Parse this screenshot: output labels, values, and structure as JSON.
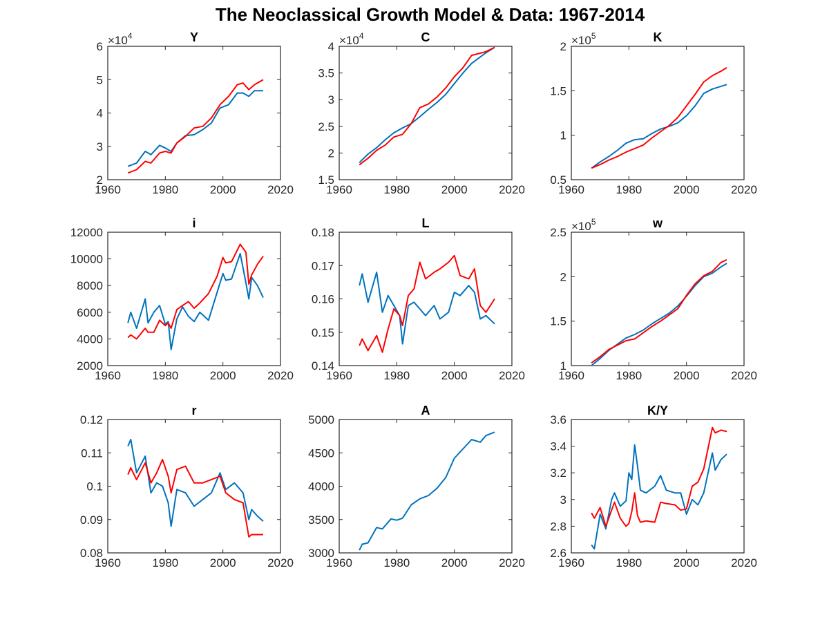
{
  "figure": {
    "title": "The Neoclassical Growth Model & Data: 1967-2014",
    "colors": {
      "series_a": "#0072bd",
      "series_b": "#ff0000",
      "axis": "#262626"
    }
  },
  "chart_data": [
    {
      "type": "line",
      "title": "Y",
      "xlim": [
        1960,
        2020
      ],
      "ylim": [
        20000,
        60000
      ],
      "xticks": [
        1960,
        1980,
        2000,
        2020
      ],
      "yticks": [
        20000,
        30000,
        40000,
        50000,
        60000
      ],
      "ytick_labels": [
        "2",
        "3",
        "4",
        "5",
        "6"
      ],
      "exponent": "4",
      "x": [
        1967,
        1970,
        1973,
        1975,
        1978,
        1980,
        1982,
        1984,
        1987,
        1990,
        1993,
        1996,
        1999,
        2002,
        2005,
        2007,
        2009,
        2011,
        2014
      ],
      "series": [
        {
          "values": [
            24000,
            25000,
            28500,
            27500,
            30300,
            29500,
            28500,
            31000,
            33200,
            33500,
            35000,
            37000,
            41500,
            42500,
            46000,
            46000,
            45000,
            46700,
            46700
          ]
        },
        {
          "values": [
            22000,
            23000,
            25500,
            25000,
            28000,
            28500,
            28000,
            31000,
            33000,
            35500,
            36000,
            38500,
            42500,
            45000,
            48500,
            49000,
            47000,
            48500,
            50000
          ]
        }
      ]
    },
    {
      "type": "line",
      "title": "C",
      "xlim": [
        1960,
        2020
      ],
      "ylim": [
        15000,
        40000
      ],
      "xticks": [
        1960,
        1980,
        2000,
        2020
      ],
      "yticks": [
        15000,
        20000,
        25000,
        30000,
        35000,
        40000
      ],
      "ytick_labels": [
        "1.5",
        "2",
        "2.5",
        "3",
        "3.5",
        "4"
      ],
      "exponent": "4",
      "x": [
        1967,
        1970,
        1973,
        1976,
        1979,
        1982,
        1985,
        1988,
        1991,
        1994,
        1997,
        2000,
        2003,
        2006,
        2009,
        2011,
        2014
      ],
      "series": [
        {
          "values": [
            18200,
            19800,
            21000,
            22500,
            23800,
            24700,
            25500,
            26800,
            28200,
            29500,
            31000,
            33000,
            35000,
            36800,
            38000,
            38800,
            39800
          ]
        },
        {
          "values": [
            17800,
            19000,
            20500,
            21500,
            23000,
            23500,
            25500,
            28500,
            29200,
            30500,
            32200,
            34300,
            36000,
            38300,
            38700,
            39000,
            39800
          ]
        }
      ]
    },
    {
      "type": "line",
      "title": "K",
      "xlim": [
        1960,
        2020
      ],
      "ylim": [
        50000,
        200000
      ],
      "xticks": [
        1960,
        1980,
        2000,
        2020
      ],
      "yticks": [
        50000,
        100000,
        150000,
        200000
      ],
      "ytick_labels": [
        "0.5",
        "1",
        "1.5",
        "2"
      ],
      "exponent": "5",
      "x": [
        1967,
        1970,
        1973,
        1976,
        1979,
        1982,
        1985,
        1988,
        1991,
        1994,
        1997,
        2000,
        2003,
        2006,
        2009,
        2012,
        2014
      ],
      "series": [
        {
          "values": [
            63000,
            70000,
            76000,
            83000,
            91000,
            95000,
            96000,
            102000,
            107000,
            110000,
            114000,
            122000,
            133000,
            147000,
            152000,
            155000,
            157000
          ]
        },
        {
          "values": [
            63000,
            67000,
            72000,
            76000,
            81000,
            85000,
            89000,
            97000,
            104000,
            111000,
            120000,
            133000,
            146000,
            160000,
            167000,
            172000,
            176000
          ]
        }
      ]
    },
    {
      "type": "line",
      "title": "i",
      "xlim": [
        1960,
        2020
      ],
      "ylim": [
        2000,
        12000
      ],
      "xticks": [
        1960,
        1980,
        2000,
        2020
      ],
      "yticks": [
        2000,
        4000,
        6000,
        8000,
        10000,
        12000
      ],
      "ytick_labels": [
        "2000",
        "4000",
        "6000",
        "8000",
        "10000",
        "12000"
      ],
      "exponent": "",
      "x": [
        1967,
        1968,
        1970,
        1973,
        1974,
        1976,
        1978,
        1980,
        1981,
        1982,
        1984,
        1986,
        1988,
        1990,
        1992,
        1995,
        1998,
        2000,
        2001,
        2003,
        2006,
        2008,
        2009,
        2010,
        2012,
        2014
      ],
      "series": [
        {
          "values": [
            5200,
            6000,
            4800,
            7000,
            5200,
            6000,
            6500,
            5100,
            5300,
            3200,
            5500,
            6400,
            5700,
            5300,
            6000,
            5400,
            7500,
            8900,
            8400,
            8500,
            10400,
            8200,
            7000,
            8600,
            8000,
            7100
          ]
        },
        {
          "values": [
            4100,
            4300,
            4000,
            4800,
            4500,
            4500,
            5400,
            5000,
            5200,
            4800,
            6200,
            6500,
            6800,
            6300,
            6700,
            7400,
            8700,
            10100,
            9700,
            9800,
            11100,
            10500,
            8100,
            8800,
            9600,
            10200
          ]
        }
      ]
    },
    {
      "type": "line",
      "title": "L",
      "xlim": [
        1960,
        2020
      ],
      "ylim": [
        0.14,
        0.18
      ],
      "xticks": [
        1960,
        1980,
        2000,
        2020
      ],
      "yticks": [
        0.14,
        0.15,
        0.16,
        0.17,
        0.18
      ],
      "ytick_labels": [
        "0.14",
        "0.15",
        "0.16",
        "0.17",
        "0.18"
      ],
      "exponent": "",
      "x": [
        1967,
        1968,
        1970,
        1973,
        1975,
        1977,
        1979,
        1981,
        1982,
        1984,
        1986,
        1988,
        1990,
        1993,
        1995,
        1998,
        2000,
        2002,
        2005,
        2007,
        2009,
        2011,
        2014
      ],
      "series": [
        {
          "values": [
            0.164,
            0.1675,
            0.159,
            0.168,
            0.156,
            0.161,
            0.158,
            0.155,
            0.1465,
            0.158,
            0.159,
            0.157,
            0.155,
            0.158,
            0.154,
            0.156,
            0.162,
            0.161,
            0.164,
            0.162,
            0.154,
            0.155,
            0.1525
          ]
        },
        {
          "values": [
            0.146,
            0.148,
            0.1445,
            0.149,
            0.144,
            0.151,
            0.157,
            0.155,
            0.152,
            0.161,
            0.163,
            0.171,
            0.166,
            0.168,
            0.169,
            0.171,
            0.173,
            0.167,
            0.166,
            0.169,
            0.158,
            0.156,
            0.16
          ]
        }
      ]
    },
    {
      "type": "line",
      "title": "w",
      "xlim": [
        1960,
        2020
      ],
      "ylim": [
        100000,
        250000
      ],
      "xticks": [
        1960,
        1980,
        2000,
        2020
      ],
      "yticks": [
        100000,
        150000,
        200000,
        250000
      ],
      "ytick_labels": [
        "1",
        "1.5",
        "2",
        "2.5"
      ],
      "exponent": "5",
      "x": [
        1967,
        1970,
        1973,
        1976,
        1979,
        1982,
        1985,
        1988,
        1991,
        1994,
        1997,
        2000,
        2003,
        2006,
        2009,
        2012,
        2014
      ],
      "series": [
        {
          "values": [
            100000,
            108000,
            117000,
            124000,
            131000,
            135000,
            140000,
            147000,
            153000,
            159000,
            167000,
            178000,
            190000,
            200000,
            204000,
            211000,
            215000
          ]
        },
        {
          "values": [
            103000,
            110000,
            118000,
            123000,
            128000,
            130000,
            137000,
            144000,
            150000,
            157000,
            164000,
            179000,
            192000,
            201000,
            206000,
            216000,
            219000
          ]
        }
      ]
    },
    {
      "type": "line",
      "title": "r",
      "xlim": [
        1960,
        2020
      ],
      "ylim": [
        0.08,
        0.12
      ],
      "xticks": [
        1960,
        1980,
        2000,
        2020
      ],
      "yticks": [
        0.08,
        0.09,
        0.1,
        0.11,
        0.12
      ],
      "ytick_labels": [
        "0.08",
        "0.09",
        "0.1",
        "0.11",
        "0.12"
      ],
      "exponent": "",
      "x": [
        1967,
        1968,
        1970,
        1973,
        1975,
        1977,
        1979,
        1981,
        1982,
        1984,
        1987,
        1990,
        1993,
        1996,
        1999,
        2001,
        2004,
        2007,
        2009,
        2010,
        2012,
        2014
      ],
      "series": [
        {
          "values": [
            0.112,
            0.114,
            0.104,
            0.109,
            0.098,
            0.101,
            0.1,
            0.095,
            0.088,
            0.099,
            0.098,
            0.094,
            0.096,
            0.098,
            0.104,
            0.099,
            0.101,
            0.098,
            0.09,
            0.093,
            0.091,
            0.0895
          ]
        },
        {
          "values": [
            0.1035,
            0.1055,
            0.102,
            0.107,
            0.101,
            0.104,
            0.108,
            0.103,
            0.098,
            0.105,
            0.106,
            0.101,
            0.101,
            0.102,
            0.103,
            0.098,
            0.096,
            0.095,
            0.0848,
            0.0855,
            0.0855,
            0.0855
          ]
        }
      ]
    },
    {
      "type": "line",
      "title": "A",
      "xlim": [
        1960,
        2020
      ],
      "ylim": [
        3000,
        5000
      ],
      "xticks": [
        1960,
        1980,
        2000,
        2020
      ],
      "yticks": [
        3000,
        3500,
        4000,
        4500,
        5000
      ],
      "ytick_labels": [
        "3000",
        "3500",
        "4000",
        "4500",
        "5000"
      ],
      "exponent": "",
      "x": [
        1967,
        1968,
        1970,
        1973,
        1975,
        1978,
        1980,
        1982,
        1985,
        1988,
        1991,
        1994,
        1997,
        2000,
        2003,
        2006,
        2009,
        2011,
        2014
      ],
      "series": [
        {
          "values": [
            3040,
            3130,
            3150,
            3380,
            3360,
            3510,
            3490,
            3520,
            3720,
            3810,
            3860,
            3970,
            4130,
            4420,
            4560,
            4700,
            4660,
            4760,
            4810
          ]
        }
      ]
    },
    {
      "type": "line",
      "title": "K/Y",
      "xlim": [
        1960,
        2020
      ],
      "ylim": [
        2.6,
        3.6
      ],
      "xticks": [
        1960,
        1980,
        2000,
        2020
      ],
      "yticks": [
        2.6,
        2.8,
        3.0,
        3.2,
        3.4,
        3.6
      ],
      "ytick_labels": [
        "2.6",
        "2.8",
        "3",
        "3.2",
        "3.4",
        "3.6"
      ],
      "exponent": "",
      "x": [
        1967,
        1968,
        1970,
        1972,
        1974,
        1975,
        1977,
        1979,
        1980,
        1981,
        1982,
        1983,
        1984,
        1986,
        1989,
        1991,
        1993,
        1996,
        1998,
        2000,
        2002,
        2004,
        2006,
        2009,
        2010,
        2012,
        2014
      ],
      "series": [
        {
          "values": [
            2.66,
            2.63,
            2.89,
            2.78,
            3.0,
            3.05,
            2.95,
            2.99,
            3.2,
            3.15,
            3.41,
            3.25,
            3.07,
            3.05,
            3.1,
            3.18,
            3.07,
            3.05,
            3.05,
            2.89,
            3.0,
            2.96,
            3.05,
            3.35,
            3.22,
            3.3,
            3.34
          ]
        },
        {
          "values": [
            2.9,
            2.86,
            2.94,
            2.8,
            2.92,
            2.98,
            2.86,
            2.8,
            2.82,
            2.91,
            3.05,
            2.88,
            2.83,
            2.84,
            2.83,
            2.98,
            2.97,
            2.96,
            2.92,
            2.93,
            3.1,
            3.13,
            3.23,
            3.54,
            3.5,
            3.52,
            3.51
          ]
        }
      ]
    }
  ]
}
